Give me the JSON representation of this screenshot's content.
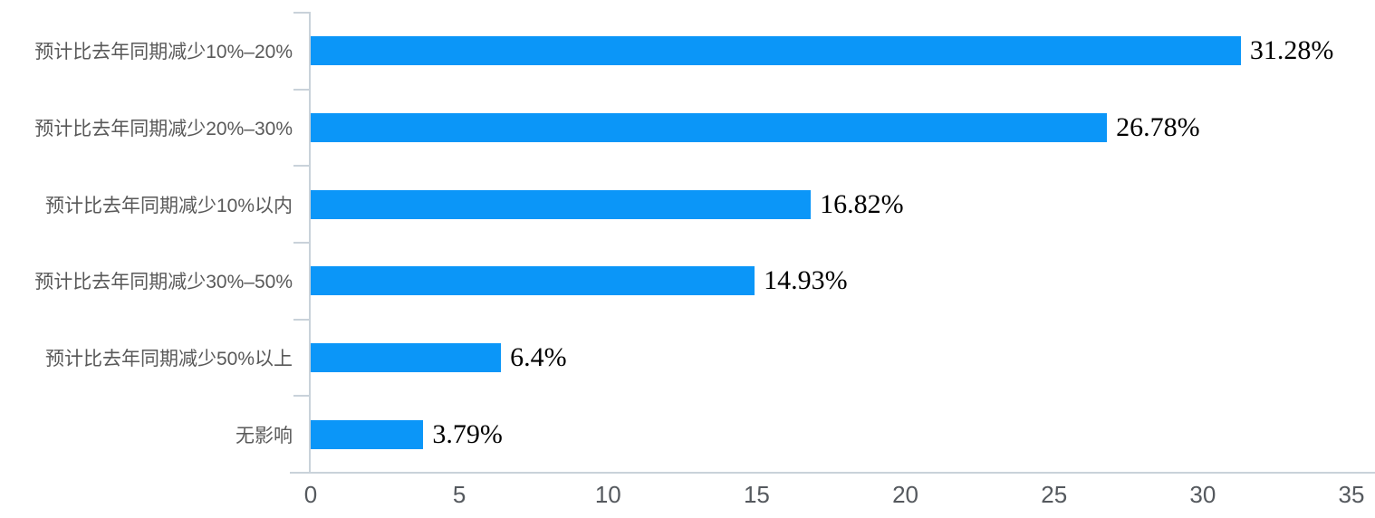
{
  "chart_data": {
    "type": "bar",
    "orientation": "horizontal",
    "title": "",
    "xlabel": "",
    "ylabel": "",
    "categories": [
      "预计比去年同期减少10%–20%",
      "预计比去年同期减少20%–30%",
      "预计比去年同期减少10%以内",
      "预计比去年同期减少30%–50%",
      "预计比去年同期减少50%以上",
      "无影响"
    ],
    "values": [
      31.28,
      26.78,
      16.82,
      14.93,
      6.4,
      3.79
    ],
    "value_labels": [
      "31.28%",
      "26.78%",
      "16.82%",
      "14.93%",
      "6.4%",
      "3.79%"
    ],
    "x_ticks": [
      0,
      5,
      10,
      15,
      20,
      25,
      30,
      35
    ],
    "xlim": [
      0,
      35
    ],
    "grid": false,
    "legend": false,
    "colors": {
      "bar": "#0b96f8",
      "axis": "#c9d2da",
      "category_label": "#595959",
      "tick_label": "#55595e",
      "value_label": "#000000",
      "background": "#ffffff"
    }
  }
}
